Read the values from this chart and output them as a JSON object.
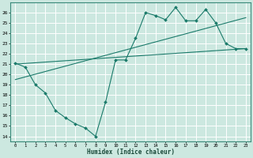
{
  "xlabel": "Humidex (Indice chaleur)",
  "ylabel": "",
  "bg_color": "#cce8e0",
  "grid_color": "#b0d8d0",
  "line_color": "#1a7a6a",
  "ylim": [
    13.5,
    27.0
  ],
  "xlim": [
    -0.5,
    23.5
  ],
  "yticks": [
    14,
    15,
    16,
    17,
    18,
    19,
    20,
    21,
    22,
    23,
    24,
    25,
    26
  ],
  "xticks": [
    0,
    1,
    2,
    3,
    4,
    5,
    6,
    7,
    8,
    9,
    10,
    11,
    12,
    13,
    14,
    15,
    16,
    17,
    18,
    19,
    20,
    21,
    22,
    23
  ],
  "line1_x": [
    0,
    1,
    2,
    3,
    4,
    5,
    6,
    7,
    8,
    9,
    10,
    11,
    12,
    13,
    14,
    15,
    16,
    17,
    18,
    19,
    20,
    21,
    22,
    23
  ],
  "line1_y": [
    21.1,
    20.7,
    19.0,
    18.2,
    16.5,
    15.8,
    15.2,
    14.8,
    14.0,
    17.3,
    21.4,
    21.4,
    23.5,
    26.0,
    25.7,
    25.3,
    26.5,
    25.2,
    25.2,
    26.3,
    25.0,
    23.0,
    22.5,
    22.5
  ],
  "line2_x": [
    0,
    23
  ],
  "line2_y": [
    21.0,
    22.5
  ],
  "line3_x": [
    0,
    23
  ],
  "line3_y": [
    19.5,
    25.5
  ]
}
